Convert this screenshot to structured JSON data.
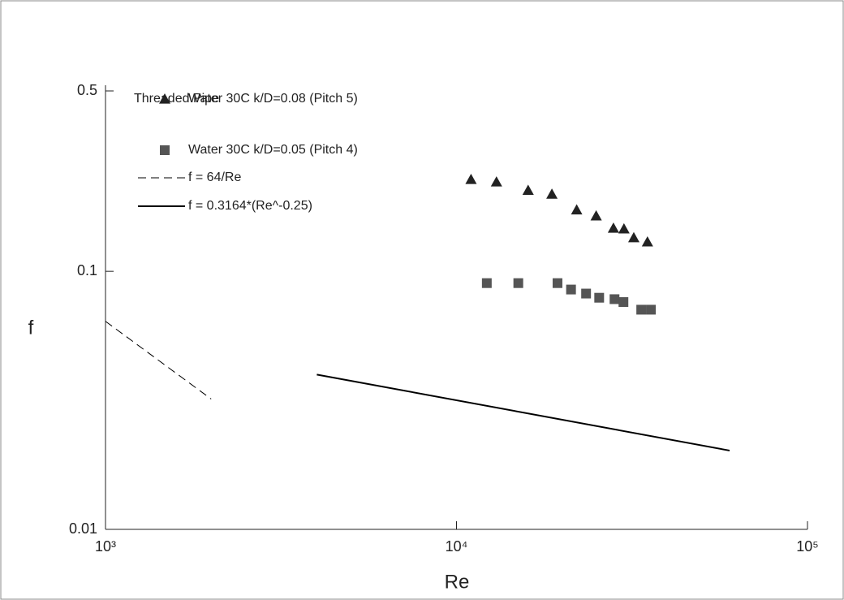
{
  "chart_data": {
    "type": "scatter",
    "log_x": true,
    "log_y": true,
    "xlabel": "Re",
    "ylabel": "f",
    "legend_title": "Threaded Pipe",
    "legend": "upper left",
    "xlim": [
      1000,
      100000
    ],
    "xticks": [
      {
        "value": 1000,
        "label": "10³"
      },
      {
        "value": 10000,
        "label": "10⁴"
      },
      {
        "value": 100000,
        "label": "10⁵"
      }
    ],
    "ylim": [
      0.01,
      0.5
    ],
    "yticks": [
      0.5,
      0.1,
      0.01
    ],
    "series": [
      {
        "name": "Water 30C k/D=0.08 (Pitch 5)",
        "color": "#222222",
        "marker": "triangle",
        "x": [
          11000,
          13000,
          16000,
          18700,
          22000,
          25000,
          28000,
          30000,
          32000,
          35000
        ],
        "values": [
          0.227,
          0.222,
          0.206,
          0.199,
          0.173,
          0.164,
          0.147,
          0.146,
          0.135,
          0.13
        ]
      },
      {
        "name": "Water 30C k/D=0.05 (Pitch 4)",
        "color": "#555555",
        "marker": "square",
        "x": [
          12200,
          15000,
          19400,
          21200,
          23400,
          25500,
          28200,
          29900,
          33600,
          35800
        ],
        "values": [
          0.09,
          0.09,
          0.09,
          0.085,
          0.082,
          0.079,
          0.078,
          0.076,
          0.071,
          0.071
        ]
      },
      {
        "name": "f = 64/Re",
        "color": "#000000",
        "marker": "line",
        "dash": true,
        "x": [
          1000,
          2000
        ],
        "values": [
          0.064,
          0.032
        ]
      },
      {
        "name": "f = 0.3164*(Re^-0.25)",
        "color": "#000000",
        "marker": "line",
        "dash": false,
        "x": [
          4000,
          60000
        ],
        "values": [
          0.0398,
          0.0202
        ]
      }
    ]
  }
}
